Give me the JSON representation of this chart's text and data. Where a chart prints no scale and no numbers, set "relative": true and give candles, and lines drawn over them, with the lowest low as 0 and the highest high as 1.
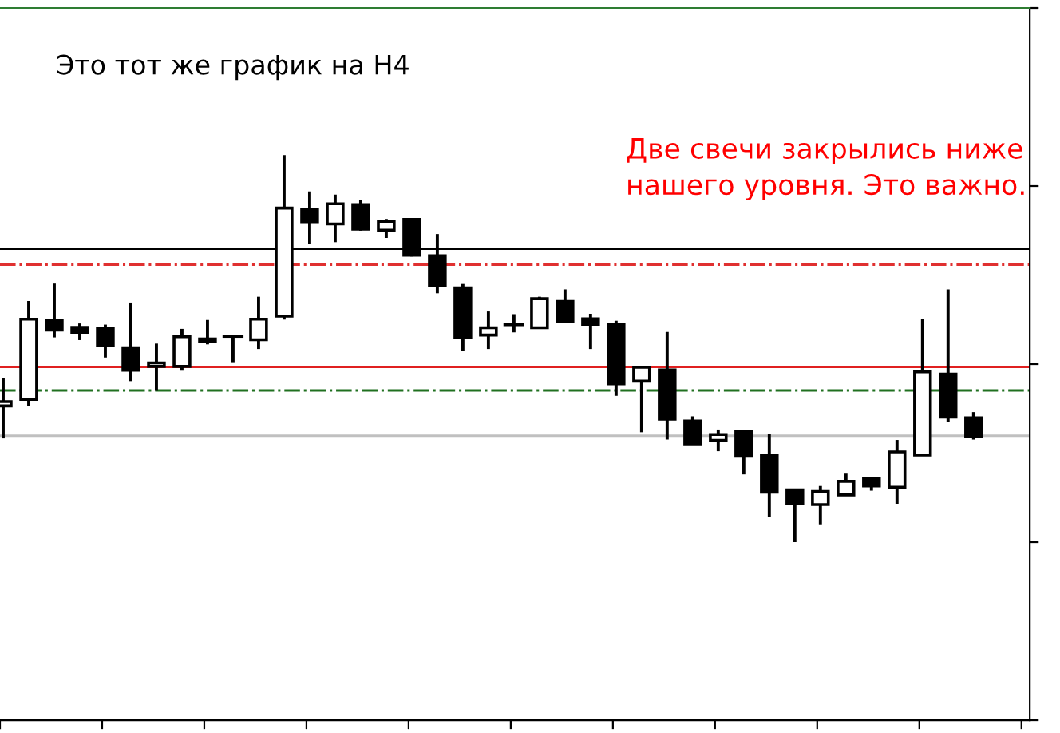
{
  "chart_data": {
    "type": "candlestick",
    "relative": true,
    "title": "Это тот же график на H4",
    "annotations": [
      "Две свечи закрылись ниже нашего уровня. Это важно."
    ],
    "categories": [
      null,
      null,
      null,
      null,
      null,
      null,
      null,
      null,
      null,
      null,
      null,
      null,
      null,
      null,
      null,
      null,
      null,
      null,
      null,
      null,
      null,
      null,
      null,
      null,
      null,
      null,
      null,
      null,
      null,
      null,
      null,
      null,
      null,
      null,
      null,
      null,
      null,
      null,
      null
    ],
    "ohlc": [
      [
        0.352,
        0.423,
        0.268,
        0.363
      ],
      [
        0.369,
        0.623,
        0.352,
        0.576
      ],
      [
        0.572,
        0.668,
        0.529,
        0.548
      ],
      [
        0.555,
        0.565,
        0.522,
        0.542
      ],
      [
        0.551,
        0.562,
        0.477,
        0.507
      ],
      [
        0.502,
        0.619,
        0.416,
        0.444
      ],
      [
        0.454,
        0.513,
        0.391,
        0.463
      ],
      [
        0.454,
        0.551,
        0.443,
        0.531
      ],
      [
        0.525,
        0.574,
        0.511,
        0.518
      ],
      [
        0.532,
        0.535,
        0.465,
        0.532
      ],
      [
        0.523,
        0.634,
        0.499,
        0.576
      ],
      [
        0.584,
        1.0,
        0.575,
        0.863
      ],
      [
        0.859,
        0.906,
        0.771,
        0.828
      ],
      [
        0.822,
        0.898,
        0.775,
        0.874
      ],
      [
        0.872,
        0.883,
        0.805,
        0.809
      ],
      [
        0.806,
        0.835,
        0.786,
        0.829
      ],
      [
        0.834,
        0.834,
        0.738,
        0.741
      ],
      [
        0.74,
        0.796,
        0.643,
        0.662
      ],
      [
        0.657,
        0.667,
        0.495,
        0.529
      ],
      [
        0.535,
        0.596,
        0.499,
        0.554
      ],
      [
        0.562,
        0.589,
        0.542,
        0.562
      ],
      [
        0.554,
        0.634,
        0.554,
        0.629
      ],
      [
        0.622,
        0.653,
        0.571,
        0.571
      ],
      [
        0.577,
        0.59,
        0.499,
        0.563
      ],
      [
        0.562,
        0.572,
        0.378,
        0.409
      ],
      [
        0.416,
        0.452,
        0.284,
        0.452
      ],
      [
        0.445,
        0.543,
        0.265,
        0.318
      ],
      [
        0.313,
        0.325,
        0.254,
        0.254
      ],
      [
        0.263,
        0.291,
        0.235,
        0.278
      ],
      [
        0.287,
        0.287,
        0.175,
        0.224
      ],
      [
        0.223,
        0.279,
        0.065,
        0.129
      ],
      [
        0.135,
        0.135,
        0.0,
        0.099
      ],
      [
        0.097,
        0.145,
        0.046,
        0.131
      ],
      [
        0.122,
        0.177,
        0.12,
        0.157
      ],
      [
        0.165,
        0.165,
        0.133,
        0.145
      ],
      [
        0.142,
        0.264,
        0.099,
        0.233
      ],
      [
        0.225,
        0.577,
        0.225,
        0.44
      ],
      [
        0.434,
        0.653,
        0.311,
        0.323
      ],
      [
        0.321,
        0.336,
        0.265,
        0.273
      ]
    ],
    "ref_lines": [
      {
        "axis": "y",
        "value": 0.758,
        "color": "#000000",
        "line_style": "solid"
      },
      {
        "axis": "y",
        "value": 0.717,
        "color": "#e03030",
        "line_style": "dashdot"
      },
      {
        "axis": "y",
        "value": 0.453,
        "color": "#e02020",
        "line_style": "solid"
      },
      {
        "axis": "y",
        "value": 0.392,
        "color": "#207020",
        "line_style": "dashdot"
      },
      {
        "axis": "y",
        "value": 0.275,
        "color": "#c0c0c0",
        "line_style": "solid"
      }
    ],
    "grid": false
  }
}
